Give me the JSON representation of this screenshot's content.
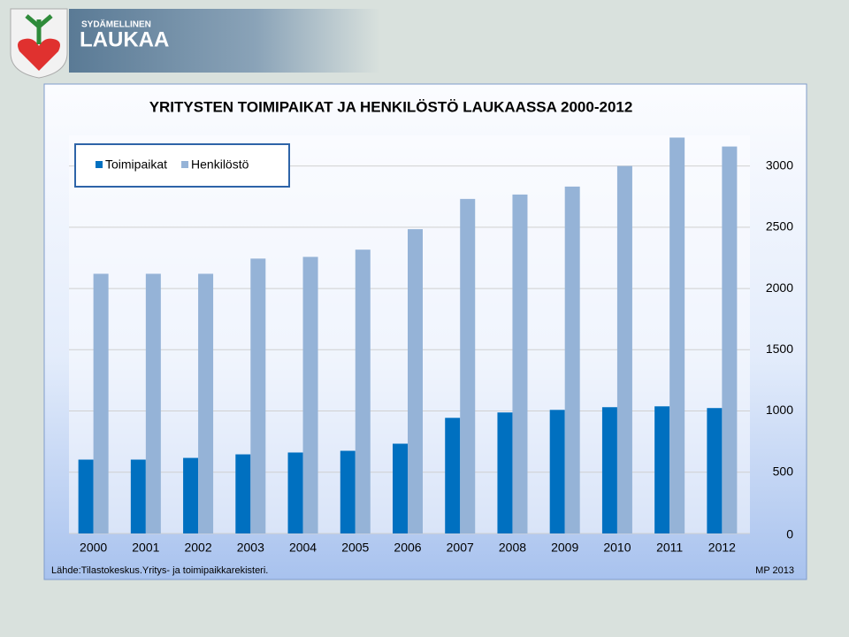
{
  "header": {
    "tagline": "SYDÄMELLINEN",
    "name": "LAUKAA"
  },
  "chart_data": {
    "type": "bar",
    "title": "YRITYSTEN TOIMIPAIKAT JA HENKILÖSTÖ  LAUKAASSA 2000-2012",
    "categories": [
      "2000",
      "2001",
      "2002",
      "2003",
      "2004",
      "2005",
      "2006",
      "2007",
      "2008",
      "2009",
      "2010",
      "2011",
      "2012"
    ],
    "series": [
      {
        "name": "Toimipaikat",
        "color": "#0070c0",
        "values": [
          603,
          603,
          617,
          646,
          661,
          675,
          733,
          944,
          988,
          1009,
          1031,
          1038,
          1024
        ]
      },
      {
        "name": "Henkilöstö",
        "color": "#95b3d7",
        "values": [
          2120,
          2120,
          2120,
          2244,
          2258,
          2317,
          2484,
          2731,
          2767,
          2832,
          3000,
          3232,
          3159
        ]
      }
    ],
    "ylim": [
      0,
      3250
    ],
    "yticks": [
      0,
      500,
      1000,
      1500,
      2000,
      2500,
      3000
    ],
    "grid": true,
    "legend": "top-left",
    "source": "Lähde:Tilastokeskus.Yritys- ja toimipaikkarekisteri.",
    "note": "MP 2013"
  }
}
